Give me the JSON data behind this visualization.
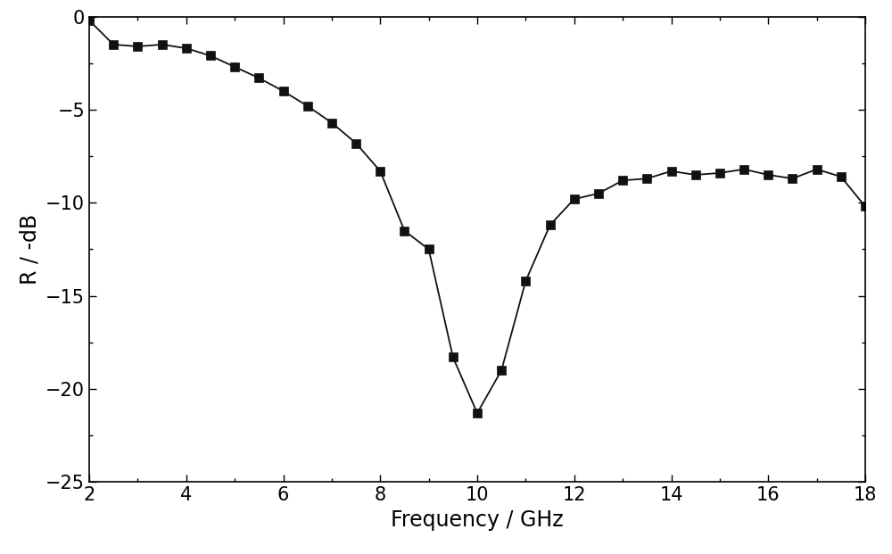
{
  "x": [
    2.0,
    2.5,
    3.0,
    3.5,
    4.0,
    4.5,
    5.0,
    5.5,
    6.0,
    6.5,
    7.0,
    7.5,
    8.0,
    8.5,
    9.0,
    9.5,
    10.0,
    10.5,
    11.0,
    11.5,
    12.0,
    12.5,
    13.0,
    13.5,
    14.0,
    14.5,
    15.0,
    15.5,
    16.0,
    16.5,
    17.0,
    17.5,
    18.0
  ],
  "y": [
    -0.2,
    -1.5,
    -1.6,
    -1.5,
    -1.7,
    -2.1,
    -2.7,
    -3.3,
    -4.0,
    -4.8,
    -5.7,
    -6.8,
    -8.3,
    -11.5,
    -12.5,
    -18.3,
    -21.3,
    -19.0,
    -14.2,
    -11.2,
    -9.8,
    -9.5,
    -8.8,
    -8.7,
    -8.3,
    -8.5,
    -8.4,
    -8.2,
    -8.5,
    -8.7,
    -8.2,
    -8.6,
    -10.2
  ],
  "xlabel": "Frequency / GHz",
  "ylabel": "R / -dB",
  "xlim": [
    2,
    18
  ],
  "ylim": [
    -25,
    0
  ],
  "xticks": [
    2,
    4,
    6,
    8,
    10,
    12,
    14,
    16,
    18
  ],
  "yticks": [
    0,
    -5,
    -10,
    -15,
    -20,
    -25
  ],
  "line_color": "#111111",
  "marker": "s",
  "marker_size": 7,
  "linewidth": 1.3,
  "figure_facecolor": "#ffffff",
  "axes_facecolor": "#ffffff",
  "xlabel_fontsize": 17,
  "ylabel_fontsize": 17,
  "tick_labelsize": 15
}
